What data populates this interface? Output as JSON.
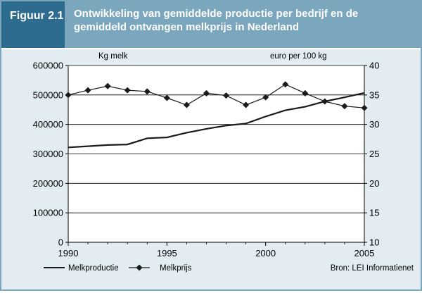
{
  "header": {
    "figure_label": "Figuur 2.1",
    "title": "Ontwikkeling van gemiddelde productie per bedrijf en de gemiddeld ontvangen melkprijs in Nederland"
  },
  "colors": {
    "header_dark": "#2d6c8f",
    "header_light": "#7aa6be",
    "chart_bg": "#e3ecf1",
    "series": "#1a1a1a"
  },
  "chart_data": {
    "type": "line",
    "title": "",
    "left_axis": {
      "label": "Kg melk",
      "range": [
        0,
        600000
      ],
      "ticks": [
        "0",
        "100000",
        "200000",
        "300000",
        "400000",
        "500000",
        "600000"
      ]
    },
    "right_axis": {
      "label": "euro per 100 kg",
      "range": [
        10,
        40
      ],
      "ticks": [
        "10",
        "15",
        "20",
        "25",
        "30",
        "35",
        "40"
      ]
    },
    "x_axis": {
      "range": [
        1990,
        2005
      ],
      "ticks": [
        "1990",
        "1995",
        "2000",
        "2005"
      ]
    },
    "x": [
      1990,
      1991,
      1992,
      1993,
      1994,
      1995,
      1996,
      1997,
      1998,
      1999,
      2000,
      2001,
      2002,
      2003,
      2004,
      2005
    ],
    "series": [
      {
        "name": "Melkproductie",
        "axis": "left",
        "marker": "none",
        "values": [
          322000,
          326000,
          330000,
          332000,
          353000,
          356000,
          372000,
          385000,
          396000,
          403000,
          427000,
          448000,
          460000,
          478000,
          492000,
          507000
        ]
      },
      {
        "name": "Melkprijs",
        "axis": "right",
        "marker": "diamond",
        "values": [
          35.0,
          35.8,
          36.5,
          35.8,
          35.6,
          34.5,
          33.3,
          35.3,
          34.9,
          33.3,
          34.6,
          36.8,
          35.3,
          33.9,
          33.1,
          32.8
        ]
      }
    ],
    "grid": true,
    "legend_position": "bottom-left",
    "source": "Bron: LEI Informatienet"
  }
}
